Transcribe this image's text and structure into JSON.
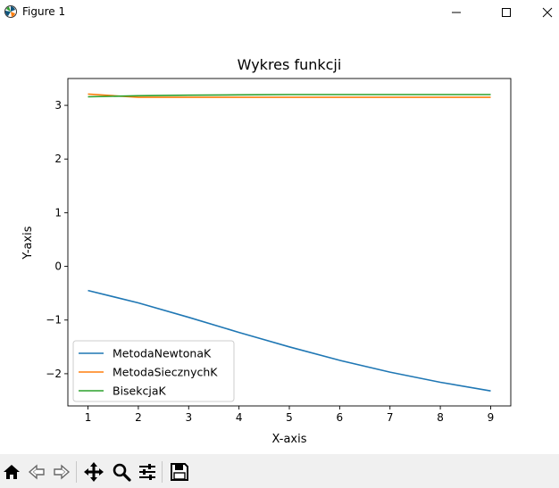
{
  "window": {
    "title": "Figure 1",
    "icon": "matplotlib-logo-icon",
    "controls": [
      "minimize-icon",
      "maximize-icon",
      "close-icon"
    ]
  },
  "toolbar": {
    "icons": [
      "home-icon",
      "back-arrow-icon",
      "forward-arrow-icon",
      "pan-move-icon",
      "zoom-magnifier-icon",
      "configure-subplots-icon",
      "save-floppy-icon"
    ]
  },
  "chart_data": {
    "type": "line",
    "title": "Wykres funkcji",
    "xlabel": "X-axis",
    "ylabel": "Y-axis",
    "x": [
      1,
      2,
      3,
      4,
      5,
      6,
      7,
      8,
      9
    ],
    "xlim": [
      0.6,
      9.4
    ],
    "ylim": [
      -2.6,
      3.5
    ],
    "xticks": [
      1,
      2,
      3,
      4,
      5,
      6,
      7,
      8,
      9
    ],
    "yticks": [
      3,
      2,
      1,
      0,
      -1,
      -2
    ],
    "ytick_labels": [
      "3",
      "2",
      "1",
      "0",
      "−1",
      "−2"
    ],
    "grid": false,
    "legend_position": "lower-left",
    "series": [
      {
        "name": "MetodaNewtonaK",
        "color": "#1f77b4",
        "values": [
          -0.45,
          -0.68,
          -0.95,
          -1.23,
          -1.5,
          -1.75,
          -1.97,
          -2.16,
          -2.32
        ]
      },
      {
        "name": "MetodaSiecznychK",
        "color": "#ff7f0e",
        "values": [
          3.21,
          3.15,
          3.15,
          3.15,
          3.15,
          3.15,
          3.15,
          3.15,
          3.15
        ]
      },
      {
        "name": "BisekcjaK",
        "color": "#2ca02c",
        "values": [
          3.16,
          3.18,
          3.19,
          3.195,
          3.2,
          3.2,
          3.2,
          3.2,
          3.2
        ]
      }
    ]
  }
}
